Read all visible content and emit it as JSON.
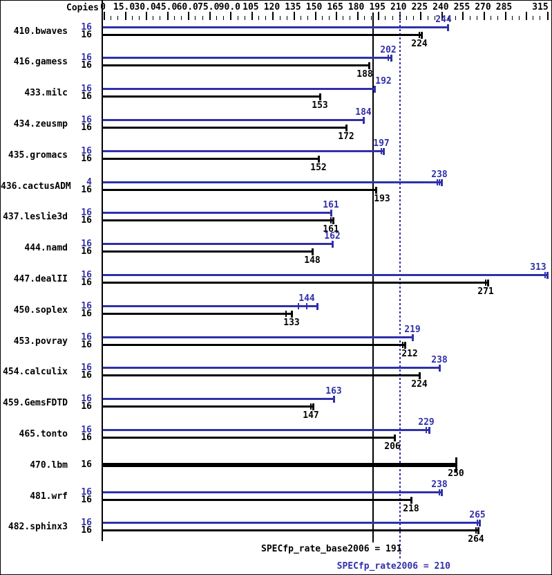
{
  "header": {
    "copies_label": "Copies"
  },
  "colors": {
    "peak_blue": "#3030aa",
    "base_black": "#000000",
    "background": "#ffffff",
    "border": "#000000"
  },
  "axis": {
    "unit_min": 0,
    "unit_max": 315,
    "minor_tick_step": 5,
    "major_tick_step": 15,
    "tick_labels": [
      {
        "value": 0,
        "text": "0"
      },
      {
        "value": 15,
        "text": "15.0"
      },
      {
        "value": 30,
        "text": "30.0"
      },
      {
        "value": 45,
        "text": "45.0"
      },
      {
        "value": 60,
        "text": "60.0"
      },
      {
        "value": 75,
        "text": "75.0"
      },
      {
        "value": 90,
        "text": "90.0"
      },
      {
        "value": 105,
        "text": "105"
      },
      {
        "value": 120,
        "text": "120"
      },
      {
        "value": 135,
        "text": "135"
      },
      {
        "value": 150,
        "text": "150"
      },
      {
        "value": 165,
        "text": "165"
      },
      {
        "value": 180,
        "text": "180"
      },
      {
        "value": 195,
        "text": "195"
      },
      {
        "value": 210,
        "text": "210"
      },
      {
        "value": 225,
        "text": "225"
      },
      {
        "value": 240,
        "text": "240"
      },
      {
        "value": 255,
        "text": "255"
      },
      {
        "value": 270,
        "text": "270"
      },
      {
        "value": 285,
        "text": "285"
      },
      {
        "value": 315,
        "text": "315"
      }
    ]
  },
  "reference_lines": {
    "base": {
      "value": 191,
      "style": "solid",
      "color": "#000000",
      "label": "SPECfp_rate_base2006 = 191"
    },
    "peak": {
      "value": 210,
      "style": "dotted",
      "color": "#3030aa",
      "label": "SPECfp_rate2006 = 210"
    }
  },
  "chart_data": {
    "type": "bar",
    "orientation": "horizontal",
    "xlim": [
      0,
      315
    ],
    "legend": [
      "peak (blue)",
      "base (black)"
    ],
    "results": [
      {
        "benchmark": "410.bwaves",
        "peak": {
          "copies": "16",
          "value": 244,
          "marks": [
            244
          ],
          "label_dx": -6
        },
        "base": {
          "copies": "16",
          "value": 224,
          "marks": [
            224,
            225.5
          ]
        }
      },
      {
        "benchmark": "416.gamess",
        "peak": {
          "copies": "16",
          "value": 202,
          "marks": [
            202,
            203.5
          ]
        },
        "base": {
          "copies": "16",
          "value": 188,
          "marks": [
            188
          ],
          "label_dx": -6
        }
      },
      {
        "benchmark": "433.milc",
        "peak": {
          "copies": "16",
          "value": 192,
          "marks": [
            192
          ],
          "label_dx": 13
        },
        "base": {
          "copies": "16",
          "value": 153,
          "marks": [
            153
          ]
        }
      },
      {
        "benchmark": "434.zeusmp",
        "peak": {
          "copies": "16",
          "value": 184,
          "marks": [
            184
          ]
        },
        "base": {
          "copies": "16",
          "value": 172,
          "marks": [
            172
          ]
        }
      },
      {
        "benchmark": "435.gromacs",
        "peak": {
          "copies": "16",
          "value": 197,
          "marks": [
            197,
            198.5
          ]
        },
        "base": {
          "copies": "16",
          "value": 152,
          "marks": [
            152
          ]
        }
      },
      {
        "benchmark": "436.cactusADM",
        "peak": {
          "copies": "4",
          "value": 238,
          "marks": [
            236.5,
            238,
            239.5
          ]
        },
        "base": {
          "copies": "16",
          "value": 193,
          "marks": [
            193
          ],
          "label_dx": 9
        }
      },
      {
        "benchmark": "437.leslie3d",
        "peak": {
          "copies": "16",
          "value": 161,
          "marks": [
            161
          ]
        },
        "base": {
          "copies": "16",
          "value": 161,
          "marks": [
            161,
            162.5
          ]
        }
      },
      {
        "benchmark": "444.namd",
        "peak": {
          "copies": "16",
          "value": 162,
          "marks": [
            162
          ]
        },
        "base": {
          "copies": "16",
          "value": 148,
          "marks": [
            148
          ]
        }
      },
      {
        "benchmark": "447.dealII",
        "peak": {
          "copies": "16",
          "value": 313,
          "marks": [
            313,
            314.5
          ],
          "label_dx": -10
        },
        "base": {
          "copies": "16",
          "value": 271,
          "marks": [
            271,
            272.5
          ]
        }
      },
      {
        "benchmark": "450.soplex",
        "peak": {
          "copies": "16",
          "value": 144,
          "marks": [
            138,
            144,
            151
          ]
        },
        "base": {
          "copies": "16",
          "value": 133,
          "marks": [
            129,
            133
          ]
        }
      },
      {
        "benchmark": "453.povray",
        "peak": {
          "copies": "16",
          "value": 219,
          "marks": [
            219
          ]
        },
        "base": {
          "copies": "16",
          "value": 212,
          "marks": [
            212,
            213.5
          ],
          "label_dx": 10
        }
      },
      {
        "benchmark": "454.calculix",
        "peak": {
          "copies": "16",
          "value": 238,
          "marks": [
            238
          ]
        },
        "base": {
          "copies": "16",
          "value": 224,
          "marks": [
            224
          ]
        }
      },
      {
        "benchmark": "459.GemsFDTD",
        "peak": {
          "copies": "16",
          "value": 163,
          "marks": [
            163
          ]
        },
        "base": {
          "copies": "16",
          "value": 147,
          "marks": [
            147,
            148.5
          ]
        }
      },
      {
        "benchmark": "465.tonto",
        "peak": {
          "copies": "16",
          "value": 229,
          "marks": [
            229,
            230.5
          ]
        },
        "base": {
          "copies": "16",
          "value": 206,
          "marks": [
            206
          ],
          "label_dx": -3
        }
      },
      {
        "benchmark": "470.lbm",
        "base": {
          "copies": "16",
          "value": 250,
          "marks": [
            250
          ],
          "thick": true
        }
      },
      {
        "benchmark": "481.wrf",
        "peak": {
          "copies": "16",
          "value": 238,
          "marks": [
            238,
            239.5
          ]
        },
        "base": {
          "copies": "16",
          "value": 218,
          "marks": [
            218
          ]
        }
      },
      {
        "benchmark": "482.sphinx3",
        "peak": {
          "copies": "16",
          "value": 265,
          "marks": [
            265,
            266.5
          ]
        },
        "base": {
          "copies": "16",
          "value": 264,
          "marks": [
            264,
            265.5
          ]
        }
      }
    ]
  }
}
